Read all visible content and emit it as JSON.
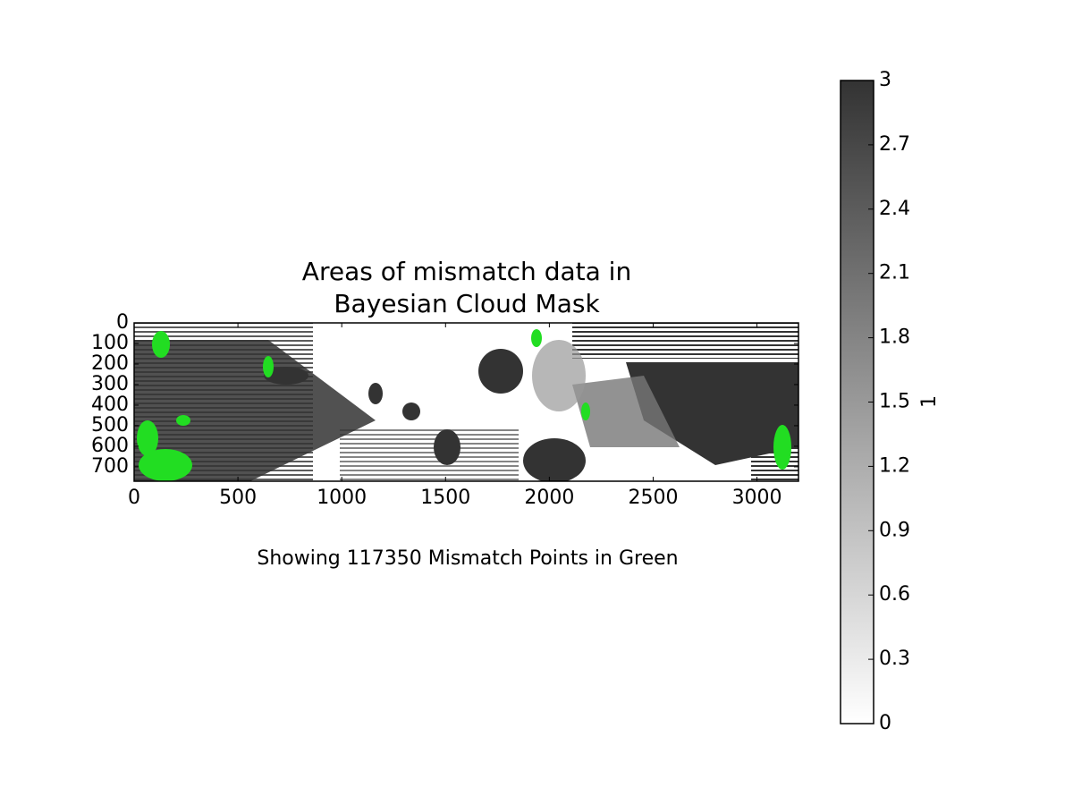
{
  "chart_data": {
    "type": "image",
    "title": "Areas of mismatch data in\nBayesian Cloud Mask",
    "annotation": "Showing 117350 Mismatch Points in Green",
    "xlim": [
      0,
      3200
    ],
    "xticks": [
      0,
      500,
      1000,
      1500,
      2000,
      2500,
      3000
    ],
    "ylim": [
      770,
      0
    ],
    "yticks": [
      0,
      100,
      200,
      300,
      400,
      500,
      600,
      700
    ],
    "colorbar": {
      "label": "1",
      "lim": [
        0,
        3
      ],
      "ticks": [
        0,
        0.3,
        0.6,
        0.9,
        1.2,
        1.5,
        1.8,
        2.1,
        2.4,
        2.7,
        3
      ],
      "colors": [
        "#ffffff",
        "#333333"
      ]
    },
    "highlight_color": "#22dd22"
  }
}
